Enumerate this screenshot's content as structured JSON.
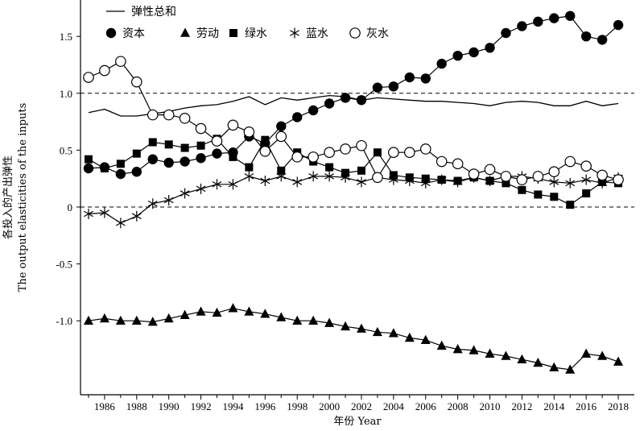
{
  "chart_data": {
    "type": "line",
    "xlabel": "年份 Year",
    "ylabel_cn": "各投入的产出弹性",
    "ylabel_en": "The output elasticities of the inputs",
    "xlim": [
      1984.5,
      2019
    ],
    "ylim": [
      -1.65,
      1.82
    ],
    "xticks": [
      1986,
      1988,
      1990,
      1992,
      1994,
      1996,
      1998,
      2000,
      2002,
      2004,
      2006,
      2008,
      2010,
      2012,
      2014,
      2016,
      2018
    ],
    "xtick_labels": [
      "1986",
      "1988",
      "1990",
      "1992",
      "1994",
      "1996",
      "1998",
      "2000",
      "2002",
      "2004",
      "2006",
      "2008",
      "2010",
      "2012",
      "2014",
      "2016",
      "2018"
    ],
    "yticks": [
      1.5,
      1.0,
      0.5,
      0,
      -0.5,
      -1.0
    ],
    "ytick_labels": [
      "1.5",
      "1.0",
      "0.5",
      "0",
      "-0.5",
      "-1.0"
    ],
    "reference_lines": [
      1.0,
      0
    ],
    "x": [
      1985,
      1986,
      1987,
      1988,
      1989,
      1990,
      1991,
      1992,
      1993,
      1994,
      1995,
      1996,
      1997,
      1998,
      1999,
      2000,
      2001,
      2002,
      2003,
      2004,
      2005,
      2006,
      2007,
      2008,
      2009,
      2010,
      2011,
      2012,
      2013,
      2014,
      2015,
      2016,
      2017,
      2018
    ],
    "legend_position": "top-left",
    "series": [
      {
        "name": "弹性总和",
        "marker": "none",
        "color": "#000000",
        "values": [
          0.83,
          0.86,
          0.8,
          0.8,
          0.82,
          0.84,
          0.87,
          0.89,
          0.9,
          0.93,
          0.97,
          0.9,
          0.96,
          0.94,
          0.96,
          0.98,
          0.97,
          0.94,
          0.96,
          0.95,
          0.94,
          0.93,
          0.93,
          0.92,
          0.91,
          0.89,
          0.92,
          0.93,
          0.92,
          0.89,
          0.89,
          0.93,
          0.89,
          0.91
        ]
      },
      {
        "name": "资本",
        "marker": "circle-filled",
        "color": "#000000",
        "values": [
          0.34,
          0.35,
          0.29,
          0.31,
          0.42,
          0.39,
          0.4,
          0.43,
          0.47,
          0.48,
          0.62,
          0.56,
          0.71,
          0.79,
          0.85,
          0.91,
          0.96,
          0.94,
          1.05,
          1.06,
          1.14,
          1.13,
          1.26,
          1.33,
          1.36,
          1.4,
          1.53,
          1.59,
          1.63,
          1.66,
          1.68,
          1.5,
          1.47,
          1.6
        ]
      },
      {
        "name": "劳动",
        "marker": "triangle-filled",
        "color": "#000000",
        "values": [
          -1.0,
          -0.98,
          -1.0,
          -1.0,
          -1.01,
          -0.98,
          -0.95,
          -0.92,
          -0.93,
          -0.89,
          -0.92,
          -0.94,
          -0.97,
          -1.0,
          -1.0,
          -1.02,
          -1.05,
          -1.07,
          -1.1,
          -1.11,
          -1.15,
          -1.17,
          -1.22,
          -1.25,
          -1.26,
          -1.29,
          -1.31,
          -1.34,
          -1.37,
          -1.41,
          -1.43,
          -1.29,
          -1.31,
          -1.36
        ]
      },
      {
        "name": "绿水",
        "marker": "square-filled",
        "color": "#000000",
        "values": [
          0.42,
          0.34,
          0.38,
          0.47,
          0.57,
          0.55,
          0.52,
          0.54,
          0.6,
          0.44,
          0.35,
          0.59,
          0.32,
          0.48,
          0.4,
          0.35,
          0.3,
          0.32,
          0.48,
          0.28,
          0.26,
          0.25,
          0.24,
          0.23,
          0.26,
          0.23,
          0.21,
          0.15,
          0.11,
          0.09,
          0.02,
          0.12,
          0.22,
          0.21
        ]
      },
      {
        "name": "蓝水",
        "marker": "asterisk",
        "color": "#000000",
        "values": [
          -0.06,
          -0.05,
          -0.14,
          -0.08,
          0.03,
          0.06,
          0.12,
          0.16,
          0.2,
          0.2,
          0.27,
          0.23,
          0.27,
          0.22,
          0.27,
          0.27,
          0.26,
          0.22,
          0.26,
          0.24,
          0.23,
          0.21,
          0.24,
          0.22,
          0.26,
          0.23,
          0.27,
          0.27,
          0.25,
          0.22,
          0.21,
          0.24,
          0.21,
          0.26
        ]
      },
      {
        "name": "灰水",
        "marker": "circle-open",
        "color": "#000000",
        "values": [
          1.14,
          1.2,
          1.28,
          1.1,
          0.81,
          0.81,
          0.78,
          0.69,
          0.58,
          0.72,
          0.66,
          0.49,
          0.62,
          0.44,
          0.44,
          0.48,
          0.51,
          0.54,
          0.26,
          0.48,
          0.48,
          0.51,
          0.4,
          0.38,
          0.29,
          0.33,
          0.27,
          0.24,
          0.27,
          0.31,
          0.4,
          0.36,
          0.28,
          0.24
        ]
      }
    ]
  }
}
